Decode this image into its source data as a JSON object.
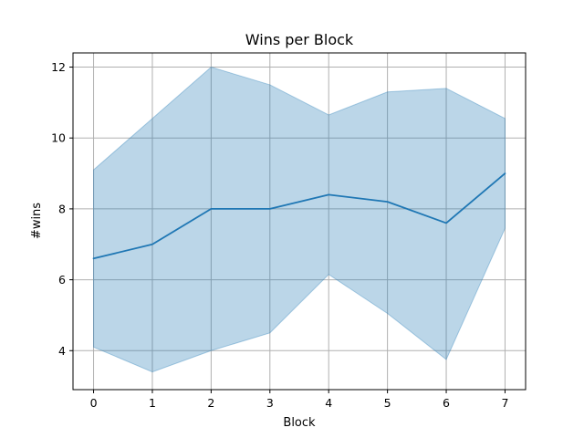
{
  "chart_data": {
    "type": "line",
    "title": "Wins per Block",
    "xlabel": "Block",
    "ylabel": "#wins",
    "x": [
      0,
      1,
      2,
      3,
      4,
      5,
      6,
      7
    ],
    "series": [
      {
        "values": [
          6.6,
          7.0,
          8.0,
          8.0,
          8.4,
          8.2,
          7.6,
          9.0
        ],
        "lower": [
          4.1,
          3.4,
          4.0,
          4.5,
          6.15,
          5.05,
          3.75,
          7.45
        ],
        "upper": [
          9.1,
          10.55,
          12.0,
          11.5,
          10.65,
          11.3,
          11.4,
          10.55
        ],
        "color": "#1f77b4",
        "band_color": "#1f77b4"
      }
    ],
    "xlim": [
      -0.35,
      7.35
    ],
    "ylim": [
      2.9,
      12.4
    ],
    "xticks": [
      0,
      1,
      2,
      3,
      4,
      5,
      6,
      7
    ],
    "yticks": [
      4,
      6,
      8,
      10,
      12
    ],
    "grid": true,
    "legend": "none"
  }
}
